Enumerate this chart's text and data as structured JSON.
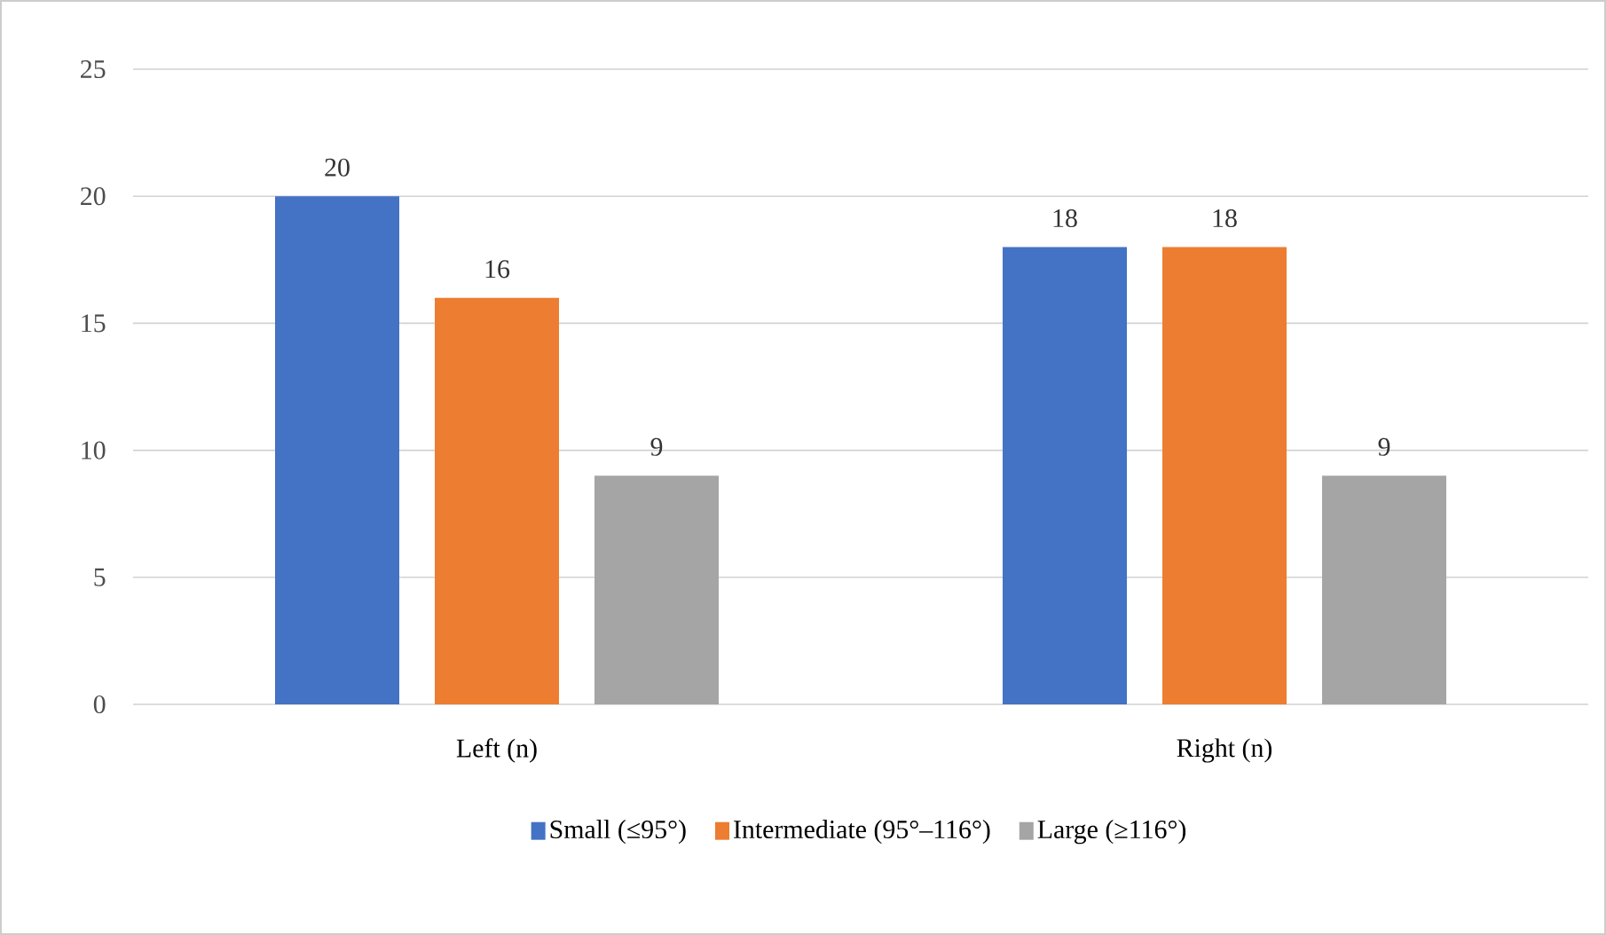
{
  "chart_data": {
    "type": "bar",
    "categories": [
      "Left (n)",
      "Right (n)"
    ],
    "series": [
      {
        "name": "Small (≤95°)",
        "color": "#4472c4",
        "values": [
          20,
          18
        ]
      },
      {
        "name": "Intermediate (95°–116°)",
        "color": "#ed7d31",
        "values": [
          16,
          18
        ]
      },
      {
        "name": "Large (≥116°)",
        "color": "#a5a5a5",
        "values": [
          9,
          9
        ]
      }
    ],
    "ylim": [
      0,
      25
    ],
    "yticks": [
      0,
      5,
      10,
      15,
      20,
      25
    ],
    "grid": "y",
    "legend": "bottom",
    "data_labels": true
  }
}
